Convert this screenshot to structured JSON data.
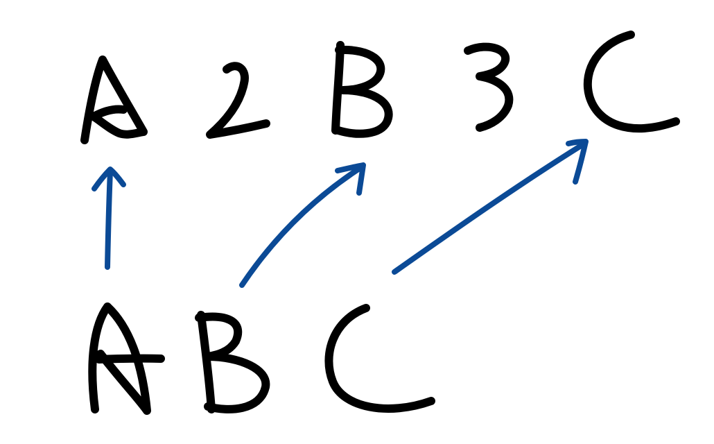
{
  "colors": {
    "background": "#ffffff",
    "ink": "#000000",
    "arrow": "#0b4a96"
  },
  "top_row": [
    "A",
    "2",
    "B",
    "3",
    "C"
  ],
  "bottom_row": [
    "A",
    "B",
    "C"
  ],
  "mappings": [
    {
      "from": "A",
      "to": "A"
    },
    {
      "from": "B",
      "to": "B"
    },
    {
      "from": "C",
      "to": "C"
    }
  ]
}
